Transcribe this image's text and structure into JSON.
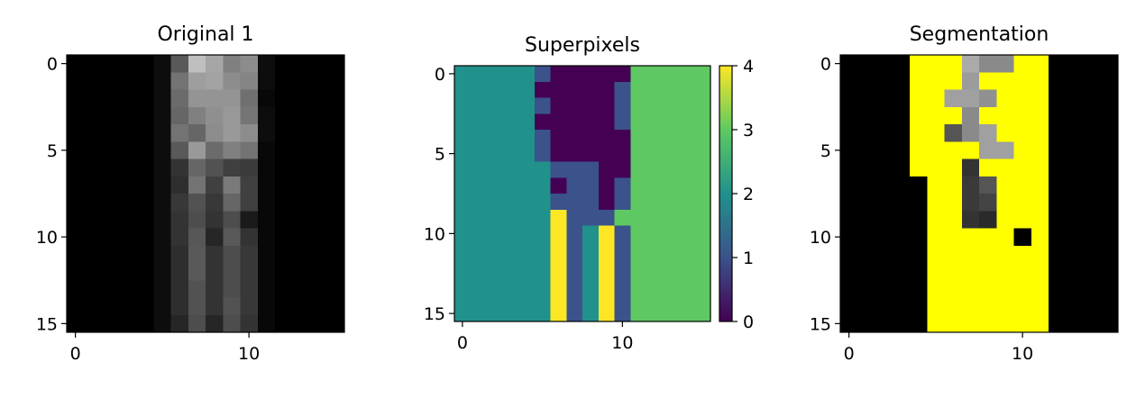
{
  "chart_data": [
    {
      "type": "heatmap",
      "title": "Original 1",
      "grid": false,
      "colormap": "gray",
      "xticks": [
        0,
        10
      ],
      "yticks": [
        0,
        5,
        10,
        15
      ],
      "rows": 16,
      "cols": 16,
      "values": [
        [
          0,
          0,
          0,
          0,
          0,
          0.05,
          0.35,
          0.75,
          0.65,
          0.5,
          0.55,
          0.05,
          0,
          0,
          0,
          0
        ],
        [
          0,
          0,
          0,
          0,
          0,
          0.05,
          0.45,
          0.62,
          0.64,
          0.55,
          0.52,
          0.05,
          0,
          0,
          0,
          0
        ],
        [
          0,
          0,
          0,
          0,
          0,
          0.05,
          0.42,
          0.58,
          0.58,
          0.58,
          0.44,
          0.03,
          0,
          0,
          0,
          0
        ],
        [
          0,
          0,
          0,
          0,
          0,
          0.05,
          0.4,
          0.5,
          0.56,
          0.6,
          0.46,
          0.05,
          0,
          0,
          0,
          0
        ],
        [
          0,
          0,
          0,
          0,
          0,
          0.05,
          0.45,
          0.4,
          0.55,
          0.6,
          0.55,
          0.05,
          0,
          0,
          0,
          0
        ],
        [
          0,
          0,
          0,
          0,
          0,
          0.05,
          0.35,
          0.6,
          0.42,
          0.5,
          0.45,
          0.03,
          0,
          0,
          0,
          0
        ],
        [
          0,
          0,
          0,
          0,
          0,
          0.05,
          0.2,
          0.4,
          0.32,
          0.25,
          0.23,
          0.03,
          0,
          0,
          0,
          0
        ],
        [
          0,
          0,
          0,
          0,
          0,
          0.05,
          0.18,
          0.45,
          0.25,
          0.48,
          0.25,
          0.03,
          0,
          0,
          0,
          0
        ],
        [
          0,
          0,
          0,
          0,
          0,
          0.05,
          0.22,
          0.32,
          0.22,
          0.4,
          0.25,
          0.03,
          0,
          0,
          0,
          0
        ],
        [
          0,
          0,
          0,
          0,
          0,
          0.05,
          0.2,
          0.3,
          0.2,
          0.3,
          0.1,
          0.03,
          0,
          0,
          0,
          0
        ],
        [
          0,
          0,
          0,
          0,
          0,
          0.05,
          0.2,
          0.34,
          0.15,
          0.35,
          0.2,
          0.03,
          0,
          0,
          0,
          0
        ],
        [
          0,
          0,
          0,
          0,
          0,
          0.05,
          0.18,
          0.35,
          0.2,
          0.3,
          0.22,
          0.03,
          0,
          0,
          0,
          0
        ],
        [
          0,
          0,
          0,
          0,
          0,
          0.05,
          0.18,
          0.35,
          0.2,
          0.3,
          0.22,
          0.03,
          0,
          0,
          0,
          0
        ],
        [
          0,
          0,
          0,
          0,
          0,
          0.05,
          0.18,
          0.32,
          0.2,
          0.3,
          0.22,
          0.03,
          0,
          0,
          0,
          0
        ],
        [
          0,
          0,
          0,
          0,
          0,
          0.05,
          0.18,
          0.32,
          0.2,
          0.32,
          0.22,
          0.03,
          0,
          0,
          0,
          0
        ],
        [
          0,
          0,
          0,
          0,
          0,
          0.05,
          0.15,
          0.3,
          0.15,
          0.3,
          0.2,
          0.03,
          0,
          0,
          0,
          0
        ]
      ]
    },
    {
      "type": "heatmap",
      "title": "Superpixels",
      "grid": false,
      "colormap": "viridis",
      "xticks": [
        0,
        10
      ],
      "yticks": [
        0,
        5,
        10,
        15
      ],
      "rows": 16,
      "cols": 16,
      "vmin": 0,
      "vmax": 4,
      "colorbar": {
        "ticks": [
          0,
          1,
          2,
          3,
          4
        ]
      },
      "values": [
        [
          2,
          2,
          2,
          2,
          2,
          1,
          0,
          0,
          0,
          0,
          0,
          3,
          3,
          3,
          3,
          3
        ],
        [
          2,
          2,
          2,
          2,
          2,
          0,
          0,
          0,
          0,
          0,
          1,
          3,
          3,
          3,
          3,
          3
        ],
        [
          2,
          2,
          2,
          2,
          2,
          1,
          0,
          0,
          0,
          0,
          1,
          3,
          3,
          3,
          3,
          3
        ],
        [
          2,
          2,
          2,
          2,
          2,
          0,
          0,
          0,
          0,
          0,
          1,
          3,
          3,
          3,
          3,
          3
        ],
        [
          2,
          2,
          2,
          2,
          2,
          1,
          0,
          0,
          0,
          0,
          0,
          3,
          3,
          3,
          3,
          3
        ],
        [
          2,
          2,
          2,
          2,
          2,
          1,
          0,
          0,
          0,
          0,
          0,
          3,
          3,
          3,
          3,
          3
        ],
        [
          2,
          2,
          2,
          2,
          2,
          2,
          1,
          1,
          1,
          0,
          0,
          3,
          3,
          3,
          3,
          3
        ],
        [
          2,
          2,
          2,
          2,
          2,
          2,
          0,
          1,
          1,
          0,
          1,
          3,
          3,
          3,
          3,
          3
        ],
        [
          2,
          2,
          2,
          2,
          2,
          2,
          1,
          1,
          1,
          0,
          1,
          3,
          3,
          3,
          3,
          3
        ],
        [
          2,
          2,
          2,
          2,
          2,
          2,
          4,
          1,
          1,
          1,
          3,
          3,
          3,
          3,
          3,
          3
        ],
        [
          2,
          2,
          2,
          2,
          2,
          2,
          4,
          1,
          2,
          4,
          1,
          3,
          3,
          3,
          3,
          3
        ],
        [
          2,
          2,
          2,
          2,
          2,
          2,
          4,
          1,
          2,
          4,
          1,
          3,
          3,
          3,
          3,
          3
        ],
        [
          2,
          2,
          2,
          2,
          2,
          2,
          4,
          1,
          2,
          4,
          1,
          3,
          3,
          3,
          3,
          3
        ],
        [
          2,
          2,
          2,
          2,
          2,
          2,
          4,
          1,
          2,
          4,
          1,
          3,
          3,
          3,
          3,
          3
        ],
        [
          2,
          2,
          2,
          2,
          2,
          2,
          4,
          1,
          2,
          4,
          1,
          3,
          3,
          3,
          3,
          3
        ],
        [
          2,
          2,
          2,
          2,
          2,
          2,
          4,
          1,
          2,
          4,
          1,
          3,
          3,
          3,
          3,
          3
        ]
      ]
    },
    {
      "type": "heatmap",
      "title": "Segmentation",
      "grid": false,
      "colormap": "image with yellow mask",
      "xticks": [
        0,
        10
      ],
      "yticks": [
        0,
        5,
        10,
        15
      ],
      "rows": 16,
      "cols": 16,
      "values": [
        [
          "#000000",
          "#000000",
          "#000000",
          "#000000",
          "#ffff00",
          "#ffff00",
          "#ffff00",
          "#aaaaaa",
          "#8a8a8a",
          "#8a8a8a",
          "#ffff00",
          "#ffff00",
          "#000000",
          "#000000",
          "#000000",
          "#000000"
        ],
        [
          "#000000",
          "#000000",
          "#000000",
          "#000000",
          "#ffff00",
          "#ffff00",
          "#ffff00",
          "#9c9c9c",
          "#ffff00",
          "#ffff00",
          "#ffff00",
          "#ffff00",
          "#000000",
          "#000000",
          "#000000",
          "#000000"
        ],
        [
          "#000000",
          "#000000",
          "#000000",
          "#000000",
          "#ffff00",
          "#ffff00",
          "#a0a0a0",
          "#a0a0a0",
          "#909090",
          "#ffff00",
          "#ffff00",
          "#ffff00",
          "#000000",
          "#000000",
          "#000000",
          "#000000"
        ],
        [
          "#000000",
          "#000000",
          "#000000",
          "#000000",
          "#ffff00",
          "#ffff00",
          "#ffff00",
          "#8a8a8a",
          "#ffff00",
          "#ffff00",
          "#ffff00",
          "#ffff00",
          "#000000",
          "#000000",
          "#000000",
          "#000000"
        ],
        [
          "#000000",
          "#000000",
          "#000000",
          "#000000",
          "#ffff00",
          "#ffff00",
          "#555555",
          "#8a8a8a",
          "#a0a0a0",
          "#ffff00",
          "#ffff00",
          "#ffff00",
          "#000000",
          "#000000",
          "#000000",
          "#000000"
        ],
        [
          "#000000",
          "#000000",
          "#000000",
          "#000000",
          "#ffff00",
          "#ffff00",
          "#ffff00",
          "#ffff00",
          "#a0a0a0",
          "#a0a0a0",
          "#ffff00",
          "#ffff00",
          "#000000",
          "#000000",
          "#000000",
          "#000000"
        ],
        [
          "#000000",
          "#000000",
          "#000000",
          "#000000",
          "#ffff00",
          "#ffff00",
          "#ffff00",
          "#333333",
          "#ffff00",
          "#ffff00",
          "#ffff00",
          "#ffff00",
          "#000000",
          "#000000",
          "#000000",
          "#000000"
        ],
        [
          "#000000",
          "#000000",
          "#000000",
          "#000000",
          "#000000",
          "#ffff00",
          "#ffff00",
          "#3a3a3a",
          "#555555",
          "#ffff00",
          "#ffff00",
          "#ffff00",
          "#000000",
          "#000000",
          "#000000",
          "#000000"
        ],
        [
          "#000000",
          "#000000",
          "#000000",
          "#000000",
          "#000000",
          "#ffff00",
          "#ffff00",
          "#3a3a3a",
          "#444444",
          "#ffff00",
          "#ffff00",
          "#ffff00",
          "#000000",
          "#000000",
          "#000000",
          "#000000"
        ],
        [
          "#000000",
          "#000000",
          "#000000",
          "#000000",
          "#000000",
          "#ffff00",
          "#ffff00",
          "#333333",
          "#2a2a2a",
          "#ffff00",
          "#ffff00",
          "#ffff00",
          "#000000",
          "#000000",
          "#000000",
          "#000000"
        ],
        [
          "#000000",
          "#000000",
          "#000000",
          "#000000",
          "#000000",
          "#ffff00",
          "#ffff00",
          "#ffff00",
          "#ffff00",
          "#ffff00",
          "#000000",
          "#ffff00",
          "#000000",
          "#000000",
          "#000000",
          "#000000"
        ],
        [
          "#000000",
          "#000000",
          "#000000",
          "#000000",
          "#000000",
          "#ffff00",
          "#ffff00",
          "#ffff00",
          "#ffff00",
          "#ffff00",
          "#ffff00",
          "#ffff00",
          "#000000",
          "#000000",
          "#000000",
          "#000000"
        ],
        [
          "#000000",
          "#000000",
          "#000000",
          "#000000",
          "#000000",
          "#ffff00",
          "#ffff00",
          "#ffff00",
          "#ffff00",
          "#ffff00",
          "#ffff00",
          "#ffff00",
          "#000000",
          "#000000",
          "#000000",
          "#000000"
        ],
        [
          "#000000",
          "#000000",
          "#000000",
          "#000000",
          "#000000",
          "#ffff00",
          "#ffff00",
          "#ffff00",
          "#ffff00",
          "#ffff00",
          "#ffff00",
          "#ffff00",
          "#000000",
          "#000000",
          "#000000",
          "#000000"
        ],
        [
          "#000000",
          "#000000",
          "#000000",
          "#000000",
          "#000000",
          "#ffff00",
          "#ffff00",
          "#ffff00",
          "#ffff00",
          "#ffff00",
          "#ffff00",
          "#ffff00",
          "#000000",
          "#000000",
          "#000000",
          "#000000"
        ],
        [
          "#000000",
          "#000000",
          "#000000",
          "#000000",
          "#000000",
          "#ffff00",
          "#ffff00",
          "#ffff00",
          "#ffff00",
          "#ffff00",
          "#ffff00",
          "#ffff00",
          "#000000",
          "#000000",
          "#000000",
          "#000000"
        ]
      ]
    }
  ]
}
